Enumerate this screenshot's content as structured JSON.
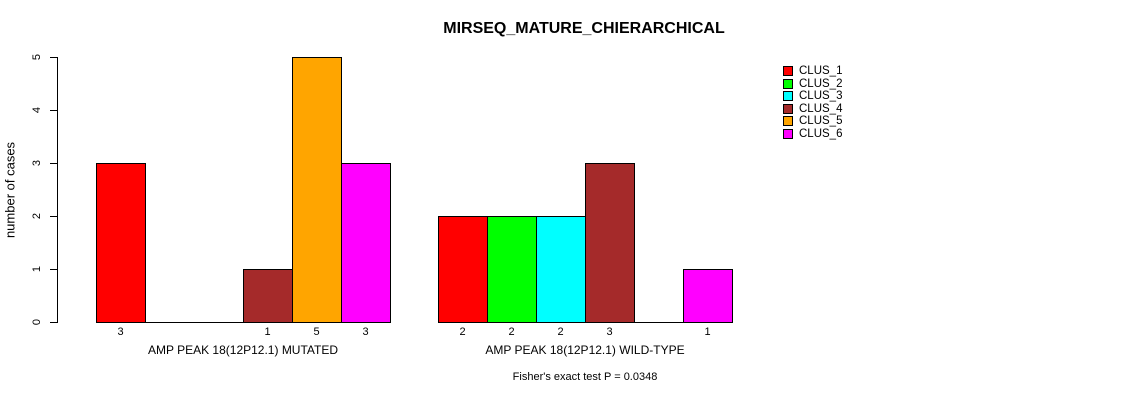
{
  "chart_data": {
    "type": "bar",
    "title": "MIRSEQ_MATURE_CHIERARCHICAL",
    "ylabel": "number of cases",
    "annotation": "Fisher's exact test P = 0.0348",
    "ylim": [
      0,
      5
    ],
    "yticks": [
      0,
      1,
      2,
      3,
      4,
      5
    ],
    "grid": false,
    "legend_position": "right",
    "bar_value_labels": "shown below each nonzero bar",
    "bar_border_color": "#000000",
    "background_color": "#ffffff",
    "categories": [
      "AMP PEAK 18(12P12.1) MUTATED",
      "AMP PEAK 18(12P12.1) WILD-TYPE"
    ],
    "series": [
      {
        "name": "CLUS_1",
        "color": "#ff0000",
        "values": [
          3,
          2
        ]
      },
      {
        "name": "CLUS_2",
        "color": "#00ff00",
        "values": [
          0,
          2
        ]
      },
      {
        "name": "CLUS_3",
        "color": "#00ffff",
        "values": [
          0,
          2
        ]
      },
      {
        "name": "CLUS_4",
        "color": "#a52a2a",
        "values": [
          1,
          3
        ]
      },
      {
        "name": "CLUS_5",
        "color": "#ffa500",
        "values": [
          5,
          0
        ]
      },
      {
        "name": "CLUS_6",
        "color": "#ff00ff",
        "values": [
          3,
          1
        ]
      }
    ]
  }
}
